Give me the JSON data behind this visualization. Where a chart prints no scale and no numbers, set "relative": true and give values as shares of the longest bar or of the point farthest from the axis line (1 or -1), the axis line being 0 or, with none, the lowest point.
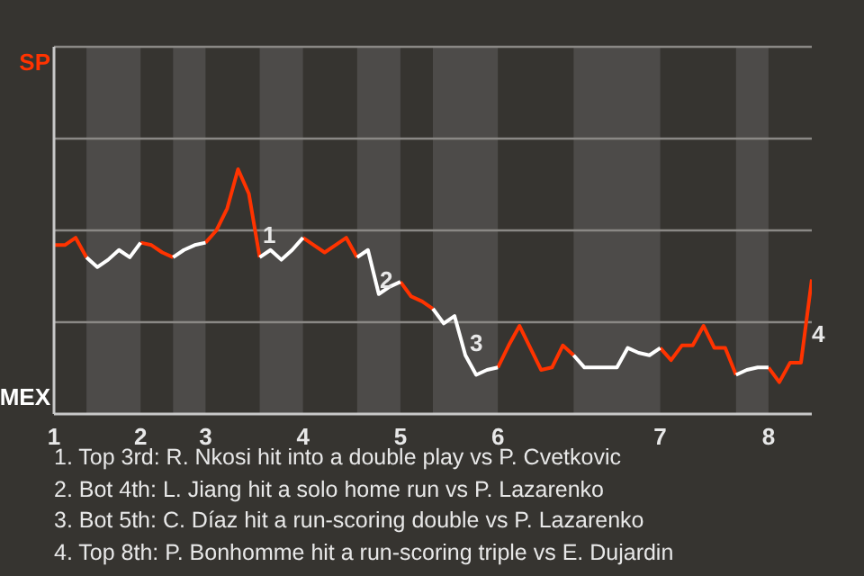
{
  "chart_data": {
    "type": "line",
    "relative": true,
    "categories": [
      "1",
      null,
      null,
      null,
      null,
      null,
      null,
      null,
      "2",
      null,
      null,
      null,
      null,
      null,
      "3",
      null,
      null,
      null,
      null,
      null,
      null,
      null,
      null,
      "4",
      null,
      null,
      null,
      null,
      null,
      null,
      null,
      null,
      "5",
      null,
      null,
      null,
      null,
      null,
      null,
      null,
      null,
      "6",
      null,
      null,
      null,
      null,
      null,
      null,
      null,
      null,
      null,
      null,
      null,
      null,
      null,
      null,
      "7",
      null,
      null,
      null,
      null,
      null,
      null,
      null,
      null,
      null,
      "8",
      null,
      null,
      null,
      null
    ],
    "series": [
      {
        "color": "#ff3300",
        "values": [
          0.69,
          0.69,
          0.72,
          0.64,
          null,
          null,
          null,
          null,
          0.7,
          0.69,
          0.66,
          0.64,
          null,
          null,
          0.7,
          0.75,
          0.84,
          1,
          0.9,
          0.64,
          null,
          null,
          null,
          0.72,
          0.69,
          0.66,
          0.69,
          0.72,
          0.64,
          null,
          null,
          null,
          0.54,
          0.48,
          0.46,
          0.43,
          null,
          null,
          null,
          null,
          null,
          0.19,
          0.28,
          0.36,
          0.27,
          0.18,
          0.19,
          0.28,
          0.24,
          null,
          null,
          null,
          null,
          null,
          null,
          null,
          0.27,
          0.22,
          0.28,
          0.28,
          0.36,
          0.27,
          0.27,
          0.16,
          null,
          null,
          0.19,
          0.13,
          0.21,
          0.21,
          0.55
        ]
      },
      {
        "color": "#ffffff",
        "values": [
          null,
          null,
          null,
          0.64,
          0.6,
          0.63,
          0.67,
          0.64,
          0.7,
          null,
          null,
          0.64,
          0.67,
          0.69,
          0.7,
          null,
          null,
          null,
          null,
          0.64,
          0.67,
          0.63,
          0.67,
          0.72,
          null,
          null,
          null,
          null,
          0.64,
          0.67,
          0.49,
          0.52,
          0.54,
          null,
          null,
          0.43,
          0.37,
          0.4,
          0.24,
          0.16,
          0.18,
          0.19,
          null,
          null,
          null,
          null,
          null,
          null,
          0.24,
          0.19,
          0.19,
          0.19,
          0.19,
          0.27,
          0.25,
          0.24,
          0.27,
          null,
          null,
          null,
          null,
          null,
          null,
          0.16,
          0.18,
          0.19,
          0.19,
          null,
          null,
          null,
          null
        ]
      }
    ],
    "ref_lines": [
      {
        "axis": "y",
        "value": 0.375,
        "color": "#8a8885"
      },
      {
        "axis": "y",
        "value": 0.75,
        "color": "#8a8885"
      },
      {
        "axis": "y",
        "value": 1.125,
        "color": "#8a8885"
      },
      {
        "axis": "y",
        "value": 1.5,
        "color": "#8a8885"
      }
    ],
    "annotations": [
      "SP",
      "MEX",
      "1",
      "2",
      "3",
      "4",
      "1. Top 3rd: R. Nkosi hit into a double play vs P. Cvetkovic",
      "2. Bot 4th: L. Jiang hit a solo home run vs P. Lazarenko",
      "3. Bot 5th: C. Díaz hit a run-scoring double vs P. Lazarenko",
      "4. Top 8th: P. Bonhomme hit a run-scoring triple vs E. Dujardin"
    ]
  }
}
